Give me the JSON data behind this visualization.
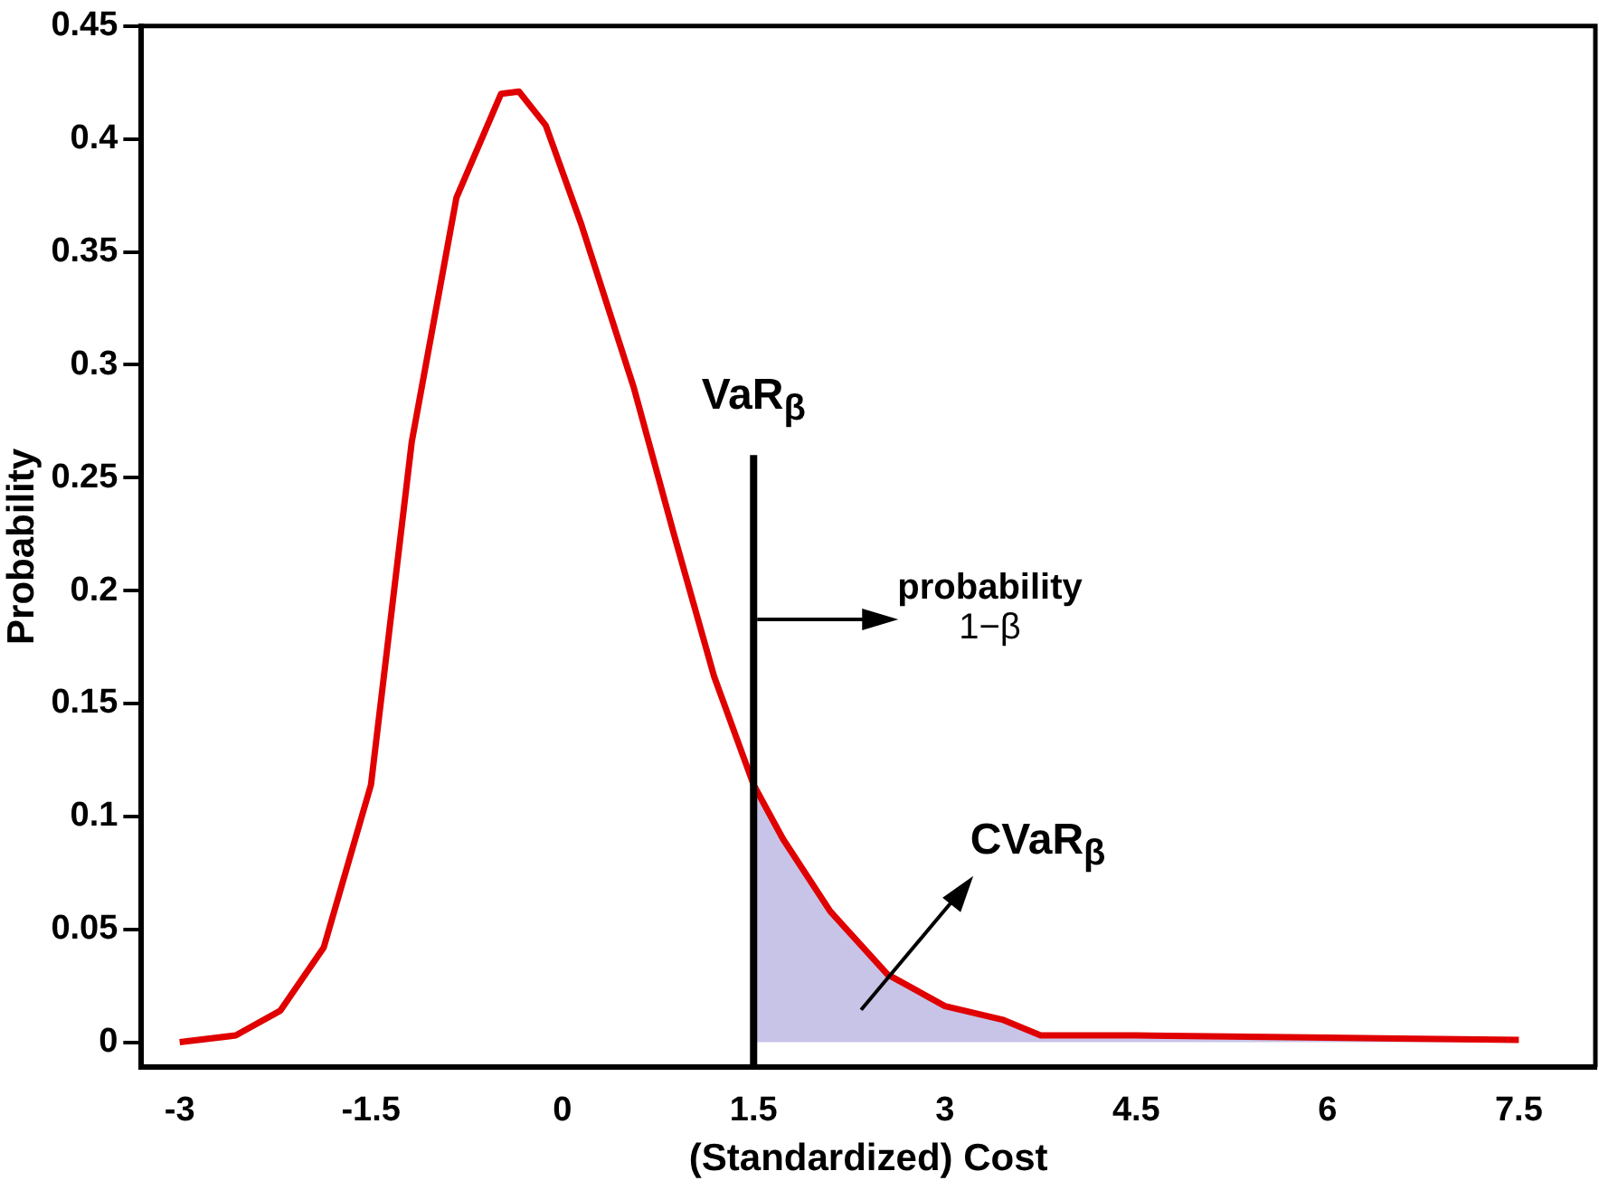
{
  "chart_data": {
    "type": "line",
    "xlabel": "(Standardized) Cost",
    "ylabel": "Probability",
    "xlim": [
      -3.3,
      8.1
    ],
    "ylim": [
      -0.011,
      0.45
    ],
    "xticks": [
      -3,
      -1.5,
      0,
      1.5,
      3,
      4.5,
      6,
      7.5
    ],
    "yticks": [
      0,
      0.05,
      0.1,
      0.15,
      0.2,
      0.25,
      0.3,
      0.35,
      0.4,
      0.45
    ],
    "grid": false,
    "legend": false,
    "marker": "none",
    "line_style": "solid",
    "series": [
      {
        "type": "area",
        "color": "#c8c4e8",
        "x": [
          1.5,
          1.73,
          2.1,
          2.55,
          3.0,
          3.45,
          3.75,
          4.5,
          6,
          7.5
        ],
        "values": [
          0.114,
          0.09,
          0.058,
          0.03,
          0.016,
          0.01,
          0.003,
          0.003,
          0.002,
          0.001
        ]
      },
      {
        "color": "#e00000",
        "x": [
          -3,
          -2.56,
          -2.21,
          -1.87,
          -1.5,
          -1.18,
          -0.83,
          -0.48,
          -0.34,
          -0.13,
          0.15,
          0.56,
          0.87,
          1.19,
          1.5,
          1.73,
          2.1,
          2.55,
          3.0,
          3.45,
          3.75,
          4.5,
          6,
          7.5
        ],
        "values": [
          0,
          0.003,
          0.014,
          0.042,
          0.114,
          0.266,
          0.374,
          0.42,
          0.421,
          0.406,
          0.362,
          0.29,
          0.226,
          0.162,
          0.114,
          0.09,
          0.058,
          0.03,
          0.016,
          0.01,
          0.003,
          0.003,
          0.002,
          0.001
        ]
      },
      {
        "color": "#000000",
        "x": [
          1.5,
          1.5
        ],
        "values": [
          -0.011,
          0.26
        ]
      }
    ],
    "annotations": [
      {
        "text": "VaR$_{β}$",
        "x": 1.5,
        "y": 0.26
      },
      "probability\n1−β",
      "CVaR$_{β}$"
    ]
  }
}
